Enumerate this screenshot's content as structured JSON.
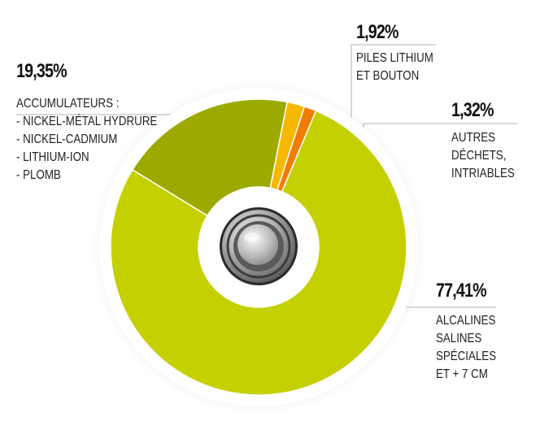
{
  "chart_data": {
    "type": "pie",
    "title": "",
    "slices": [
      {
        "key": "accumulateurs",
        "value": 19.35,
        "label": "19,35%",
        "color": "#9caa00",
        "lines": [
          "ACCUMULATEURS :",
          "- NICKEL-MÉTAL HYDRURE",
          "- NICKEL-CADMIUM",
          "- LITHIUM-ION",
          "- PLOMB"
        ]
      },
      {
        "key": "piles_lithium",
        "value": 1.92,
        "label": "1,92%",
        "color": "#f6b800",
        "lines": [
          "PILES LITHIUM",
          "ET BOUTON"
        ]
      },
      {
        "key": "autres",
        "value": 1.32,
        "label": "1,32%",
        "color": "#ef7d00",
        "lines": [
          "AUTRES",
          "DÉCHETS,",
          "INTRIABLES"
        ]
      },
      {
        "key": "alcalines",
        "value": 77.41,
        "label": "77,41%",
        "color": "#c4d000",
        "lines": [
          "ALCALINES",
          "SALINES",
          "SPÉCIALES",
          "ET + 7 CM"
        ]
      }
    ],
    "center_icon": "button-battery-icon",
    "legend": "none"
  }
}
